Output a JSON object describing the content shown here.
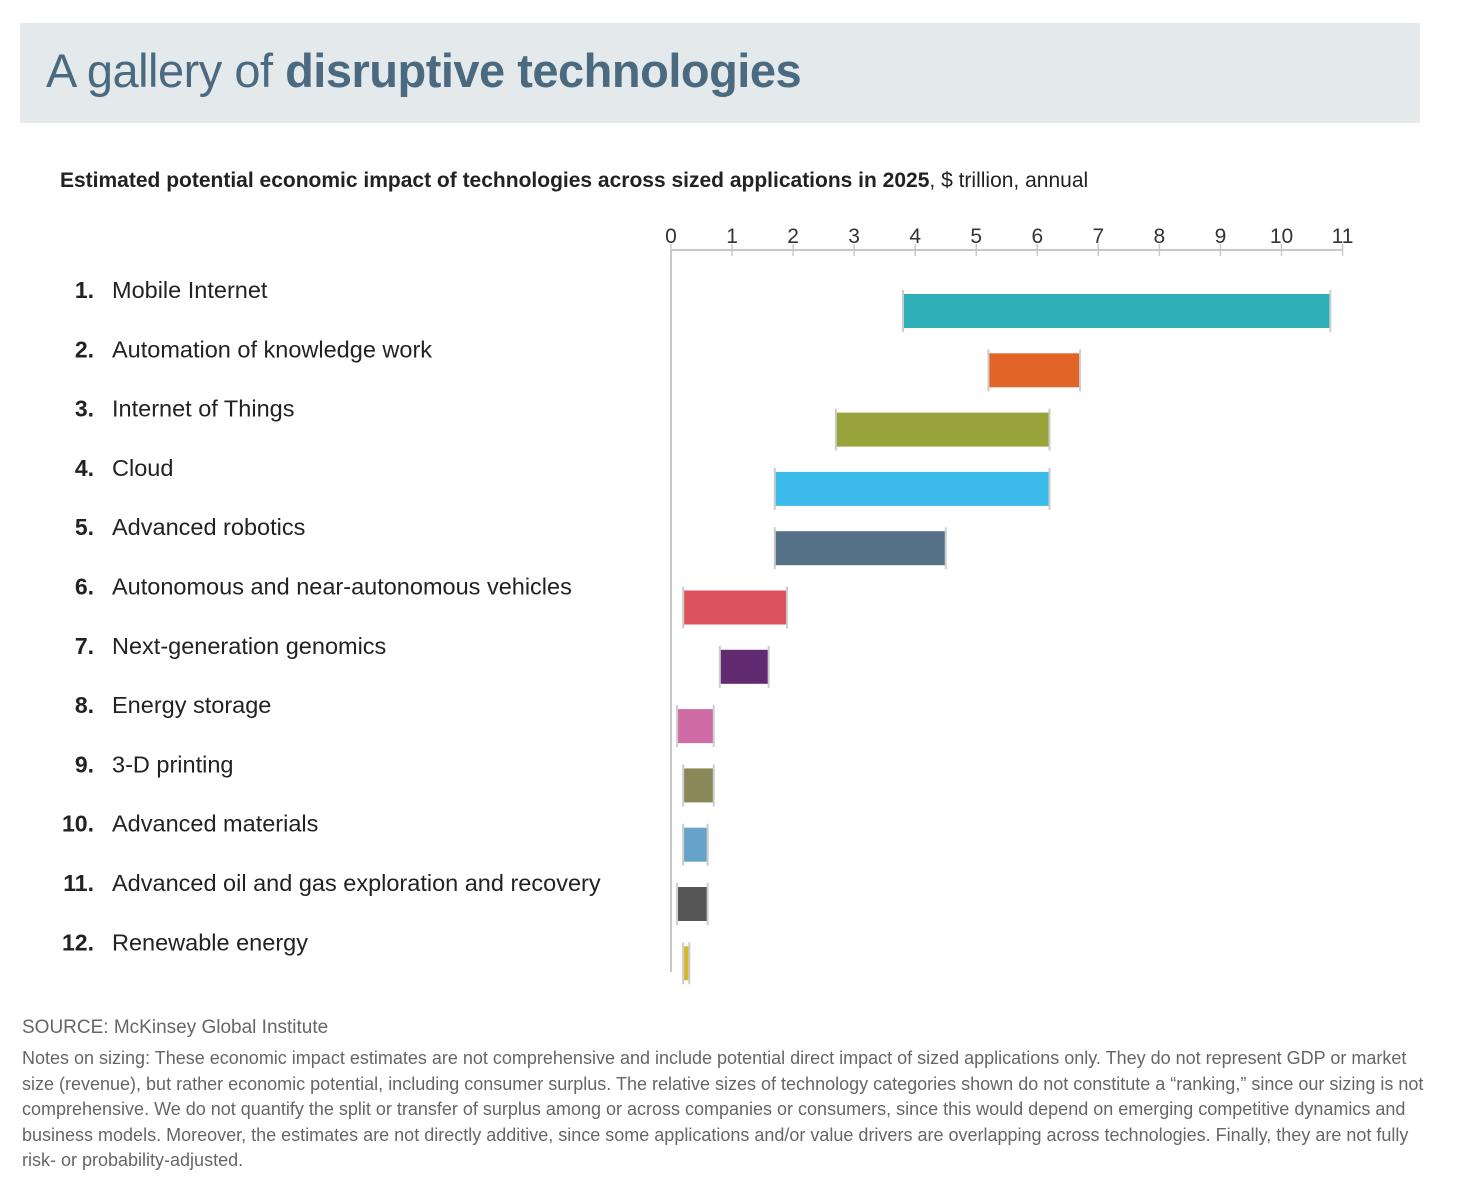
{
  "header": {
    "title_prefix": "A gallery of ",
    "title_bold": "disruptive technologies"
  },
  "chart_data": {
    "type": "bar",
    "subtitle_bold": "Estimated potential economic impact of technologies across sized applications in 2025",
    "subtitle_unit": ", $ trillion, annual",
    "xlim": [
      0,
      11
    ],
    "xticks": [
      "0",
      "1",
      "2",
      "3",
      "4",
      "5",
      "6",
      "7",
      "8",
      "9",
      "10",
      "11"
    ],
    "grid": false,
    "categories": [
      {
        "rank": "1.",
        "label": "Mobile Internet",
        "low": 3.8,
        "high": 10.8,
        "color": "#2fafb8"
      },
      {
        "rank": "2.",
        "label": "Automation of knowledge work",
        "low": 5.2,
        "high": 6.7,
        "color": "#e06527"
      },
      {
        "rank": "3.",
        "label": "Internet of Things",
        "low": 2.7,
        "high": 6.2,
        "color": "#98a33b"
      },
      {
        "rank": "4.",
        "label": "Cloud",
        "low": 1.7,
        "high": 6.2,
        "color": "#3bbbea"
      },
      {
        "rank": "5.",
        "label": "Advanced robotics",
        "low": 1.7,
        "high": 4.5,
        "color": "#557185"
      },
      {
        "rank": "6.",
        "label": "Autonomous and near-autonomous vehicles",
        "low": 0.2,
        "high": 1.9,
        "color": "#dd535d"
      },
      {
        "rank": "7.",
        "label": "Next-generation genomics",
        "low": 0.8,
        "high": 1.6,
        "color": "#622b71"
      },
      {
        "rank": "8.",
        "label": "Energy storage",
        "low": 0.1,
        "high": 0.7,
        "color": "#d06aa4"
      },
      {
        "rank": "9.",
        "label": "3-D printing",
        "low": 0.2,
        "high": 0.7,
        "color": "#8a8759"
      },
      {
        "rank": "10.",
        "label": "Advanced materials",
        "low": 0.2,
        "high": 0.6,
        "color": "#65a4c8"
      },
      {
        "rank": "11.",
        "label": "Advanced oil and gas exploration and recovery",
        "low": 0.1,
        "high": 0.6,
        "color": "#555555"
      },
      {
        "rank": "12.",
        "label": "Renewable energy",
        "low": 0.2,
        "high": 0.3,
        "color": "#d9b52a"
      }
    ]
  },
  "footer": {
    "source": "SOURCE: McKinsey Global Institute",
    "notes": "Notes on sizing: These economic impact estimates are not comprehensive and include potential direct impact of sized applications only. They do not represent GDP or market size (revenue), but rather economic potential, including consumer surplus. The relative sizes of technology categories shown do not constitute a “ranking,” since our sizing is not comprehensive. We do not quantify the split or transfer of surplus among or across companies or consumers, since this would depend on emerging competitive dynamics and business models. Moreover, the estimates are not directly additive, since some applications and/or value drivers are overlapping across technologies. Finally, they are not fully risk- or probability-adjusted."
  }
}
